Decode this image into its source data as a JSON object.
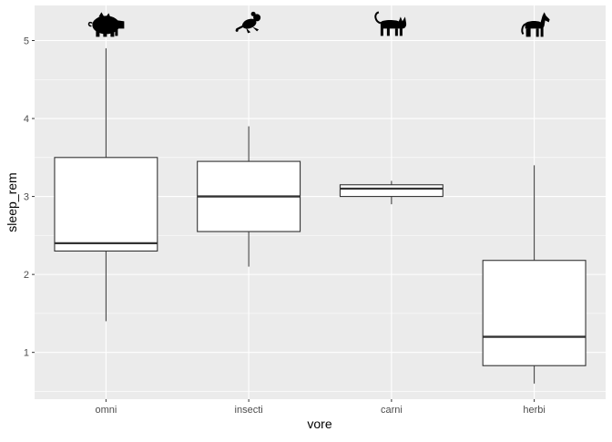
{
  "chart_data": {
    "type": "boxplot",
    "xlabel": "vore",
    "ylabel": "sleep_rem",
    "ylim": [
      0.4,
      5.45
    ],
    "yticks": [
      1,
      2,
      3,
      4,
      5
    ],
    "categories": [
      "omni",
      "insecti",
      "carni",
      "herbi"
    ],
    "boxes": [
      {
        "category": "omni",
        "icon": "pig-icon",
        "whisker_low": 1.4,
        "q1": 2.3,
        "median": 2.4,
        "q3": 3.5,
        "whisker_high": 4.9
      },
      {
        "category": "insecti",
        "icon": "rodent-icon",
        "whisker_low": 2.1,
        "q1": 2.55,
        "median": 3.0,
        "q3": 3.45,
        "whisker_high": 3.9
      },
      {
        "category": "carni",
        "icon": "cat-icon",
        "whisker_low": 2.9,
        "q1": 3.0,
        "median": 3.1,
        "q3": 3.15,
        "whisker_high": 3.2
      },
      {
        "category": "herbi",
        "icon": "horse-icon",
        "whisker_low": 0.6,
        "q1": 0.83,
        "median": 1.2,
        "q3": 2.18,
        "whisker_high": 3.4
      }
    ],
    "colors": {
      "panel": "#ebebeb",
      "grid_major": "#ffffff",
      "box_fill": "#ffffff",
      "box_stroke": "#333333"
    }
  }
}
